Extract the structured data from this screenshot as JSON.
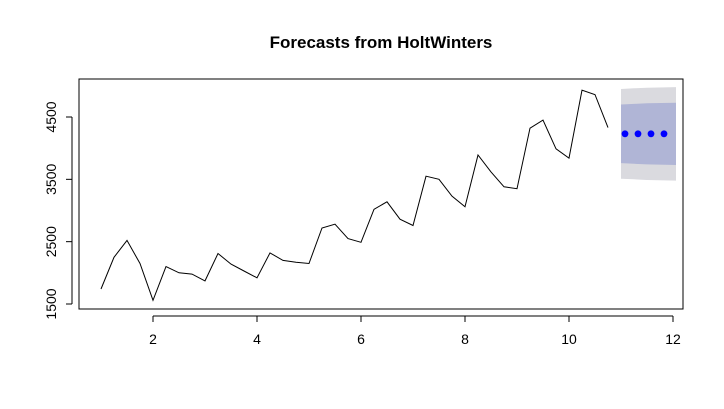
{
  "chart_data": {
    "type": "line",
    "title": "Forecasts from HoltWinters",
    "xlabel": "",
    "ylabel": "",
    "xlim": [
      1,
      12
    ],
    "ylim": [
      1500,
      4950
    ],
    "grid": false,
    "x_ticks": [
      2,
      4,
      6,
      8,
      10,
      12
    ],
    "y_ticks": [
      1500,
      2500,
      3500,
      4500
    ],
    "x_tick_labels": [
      "2",
      "4",
      "6",
      "8",
      "10",
      "12"
    ],
    "y_tick_labels": [
      "1500",
      "2500",
      "3500",
      "4500"
    ],
    "observed": {
      "x": [
        1,
        1.25,
        1.5,
        1.75,
        2,
        2.25,
        2.5,
        2.75,
        3,
        3.25,
        3.5,
        3.75,
        4,
        4.25,
        4.5,
        4.75,
        5,
        5.25,
        5.5,
        5.75,
        6,
        6.25,
        6.5,
        6.75,
        7,
        7.25,
        7.5,
        7.75,
        8,
        8.25,
        8.5,
        8.75,
        9,
        9.25,
        9.5,
        9.75,
        10,
        10.25,
        10.5,
        10.75
      ],
      "y": [
        1740,
        2250,
        2520,
        2150,
        1560,
        2100,
        2000,
        1980,
        1870,
        2310,
        2140,
        2030,
        1920,
        2320,
        2200,
        2170,
        2150,
        2720,
        2780,
        2550,
        2490,
        3020,
        3140,
        2860,
        2760,
        3550,
        3500,
        3230,
        3060,
        3890,
        3620,
        3380,
        3350,
        4320,
        4450,
        3990,
        3840,
        4930,
        4860,
        4330
      ]
    },
    "forecast": {
      "x": [
        11,
        11.25,
        11.5,
        11.75
      ],
      "y": [
        4230,
        4230,
        4230,
        4230
      ],
      "color": "#0000ff"
    },
    "interval_80": {
      "x": [
        11,
        11.25,
        11.5,
        11.75
      ],
      "lower": [
        3760,
        3750,
        3740,
        3730
      ],
      "upper": [
        4700,
        4710,
        4720,
        4730
      ],
      "color": "#b0b5d6"
    },
    "interval_95": {
      "x": [
        11,
        11.25,
        11.5,
        11.75
      ],
      "lower": [
        3510,
        3500,
        3490,
        3480
      ],
      "upper": [
        4950,
        4960,
        4970,
        4980
      ],
      "color": "#dadadf"
    }
  }
}
